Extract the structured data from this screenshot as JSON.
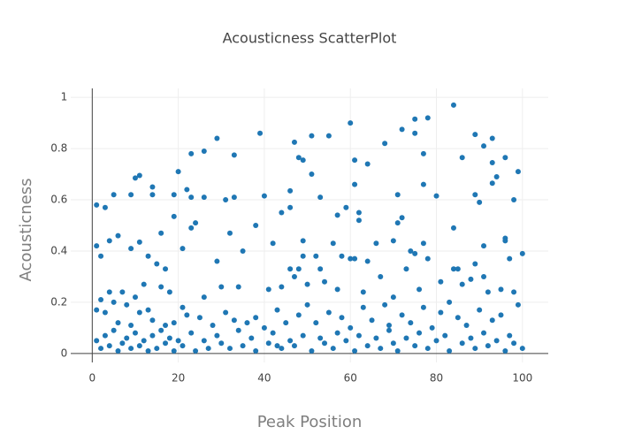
{
  "chart_data": {
    "type": "scatter",
    "title": "Acousticness ScatterPlot",
    "x_label": "Peak Position",
    "y_label": "Acousticness",
    "color": "#1f77b4",
    "grid": true,
    "xlim": [
      -5,
      106
    ],
    "ylim": [
      -0.035,
      1.035
    ],
    "xticks": [
      0,
      20,
      40,
      60,
      80,
      100
    ],
    "yticks": [
      0,
      0.2,
      0.4,
      0.6,
      0.8,
      1
    ],
    "x": [
      84,
      78,
      75,
      60,
      39,
      75,
      72,
      89,
      93,
      29,
      47,
      55,
      51,
      68,
      91,
      23,
      26,
      33,
      77,
      48,
      49,
      61,
      86,
      96,
      64,
      93,
      99,
      20,
      11,
      10,
      94,
      51,
      93,
      46,
      14,
      22,
      61,
      77,
      5,
      9,
      14,
      19,
      23,
      26,
      31,
      33,
      40,
      53,
      71,
      80,
      89,
      90,
      98,
      1,
      3,
      59,
      57,
      62,
      44,
      19,
      46,
      72,
      71,
      24,
      84,
      23,
      32,
      62,
      38,
      6,
      16,
      4,
      11,
      42,
      49,
      56,
      66,
      70,
      77,
      91,
      96,
      96,
      1,
      9,
      21,
      13,
      2,
      35,
      49,
      52,
      58,
      60,
      61,
      64,
      74,
      75,
      84,
      85,
      89,
      91,
      97,
      100,
      15,
      29,
      46,
      48,
      53,
      73,
      78,
      17,
      4,
      7,
      10,
      12,
      16,
      18,
      26,
      30,
      34,
      41,
      44,
      47,
      50,
      54,
      57,
      63,
      67,
      70,
      76,
      81,
      86,
      88,
      92,
      95,
      98,
      2,
      5,
      8,
      13,
      21,
      1,
      3,
      6,
      9,
      11,
      14,
      17,
      19,
      22,
      25,
      28,
      31,
      33,
      36,
      38,
      40,
      43,
      45,
      48,
      50,
      52,
      55,
      58,
      60,
      63,
      65,
      68,
      69,
      72,
      74,
      77,
      79,
      81,
      83,
      85,
      87,
      90,
      93,
      95,
      99,
      1,
      2,
      3,
      4,
      5,
      6,
      7,
      8,
      9,
      10,
      11,
      12,
      13,
      14,
      15,
      16,
      17,
      18,
      19,
      20,
      21,
      23,
      24,
      26,
      27,
      29,
      30,
      32,
      34,
      35,
      37,
      38,
      41,
      42,
      44,
      46,
      47,
      49,
      51,
      53,
      54,
      56,
      57,
      59,
      61,
      62,
      64,
      66,
      67,
      69,
      70,
      71,
      73,
      75,
      76,
      78,
      80,
      82,
      83,
      86,
      88,
      89,
      91,
      92,
      94,
      96,
      97,
      98,
      100,
      43
    ],
    "values": [
      0.97,
      0.92,
      0.915,
      0.9,
      0.86,
      0.86,
      0.875,
      0.855,
      0.84,
      0.84,
      0.825,
      0.85,
      0.85,
      0.82,
      0.81,
      0.78,
      0.79,
      0.775,
      0.78,
      0.765,
      0.755,
      0.755,
      0.765,
      0.765,
      0.74,
      0.745,
      0.71,
      0.71,
      0.695,
      0.685,
      0.69,
      0.7,
      0.665,
      0.635,
      0.65,
      0.64,
      0.66,
      0.66,
      0.62,
      0.62,
      0.62,
      0.62,
      0.61,
      0.61,
      0.6,
      0.61,
      0.615,
      0.61,
      0.62,
      0.615,
      0.62,
      0.59,
      0.6,
      0.58,
      0.57,
      0.57,
      0.54,
      0.55,
      0.55,
      0.535,
      0.57,
      0.53,
      0.51,
      0.51,
      0.49,
      0.49,
      0.47,
      0.52,
      0.5,
      0.46,
      0.47,
      0.44,
      0.435,
      0.43,
      0.44,
      0.43,
      0.43,
      0.44,
      0.43,
      0.42,
      0.45,
      0.44,
      0.42,
      0.41,
      0.41,
      0.38,
      0.38,
      0.4,
      0.38,
      0.38,
      0.38,
      0.37,
      0.37,
      0.36,
      0.4,
      0.39,
      0.33,
      0.33,
      0.35,
      0.3,
      0.37,
      0.39,
      0.35,
      0.36,
      0.33,
      0.33,
      0.33,
      0.33,
      0.37,
      0.33,
      0.24,
      0.24,
      0.22,
      0.27,
      0.26,
      0.24,
      0.22,
      0.26,
      0.26,
      0.25,
      0.26,
      0.3,
      0.27,
      0.28,
      0.25,
      0.24,
      0.3,
      0.22,
      0.25,
      0.28,
      0.27,
      0.29,
      0.24,
      0.25,
      0.24,
      0.21,
      0.2,
      0.19,
      0.17,
      0.18,
      0.17,
      0.16,
      0.12,
      0.11,
      0.16,
      0.13,
      0.11,
      0.12,
      0.15,
      0.14,
      0.11,
      0.16,
      0.13,
      0.12,
      0.14,
      0.1,
      0.17,
      0.12,
      0.15,
      0.19,
      0.12,
      0.16,
      0.14,
      0.1,
      0.18,
      0.13,
      0.19,
      0.11,
      0.15,
      0.12,
      0.18,
      0.1,
      0.16,
      0.2,
      0.14,
      0.11,
      0.17,
      0.13,
      0.15,
      0.19,
      0.05,
      0.02,
      0.07,
      0.03,
      0.09,
      0.01,
      0.04,
      0.06,
      0.02,
      0.08,
      0.03,
      0.05,
      0.01,
      0.07,
      0.02,
      0.09,
      0.04,
      0.06,
      0.01,
      0.05,
      0.03,
      0.08,
      0.01,
      0.05,
      0.02,
      0.07,
      0.04,
      0.02,
      0.09,
      0.03,
      0.06,
      0.01,
      0.04,
      0.08,
      0.02,
      0.05,
      0.03,
      0.07,
      0.01,
      0.06,
      0.04,
      0.02,
      0.08,
      0.05,
      0.01,
      0.07,
      0.03,
      0.06,
      0.02,
      0.09,
      0.04,
      0.01,
      0.06,
      0.03,
      0.08,
      0.02,
      0.05,
      0.07,
      0.01,
      0.04,
      0.06,
      0.02,
      0.08,
      0.03,
      0.05,
      0.01,
      0.07,
      0.04,
      0.02,
      0.03
    ]
  }
}
